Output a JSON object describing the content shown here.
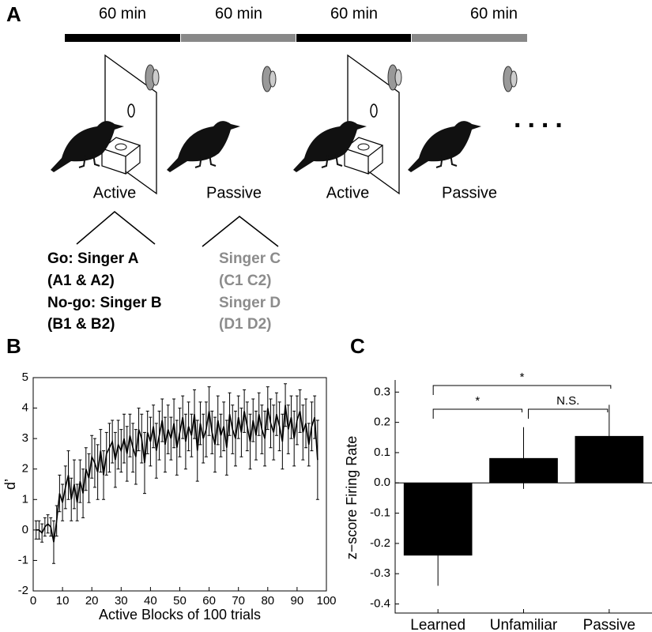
{
  "panel_a": {
    "label": "A",
    "durations": [
      "60 min",
      "60 min",
      "60 min",
      "60 min"
    ],
    "conditions": [
      "Active",
      "Passive",
      "Active",
      "Passive"
    ],
    "active_stimuli": [
      "Go: Singer A",
      "(A1 & A2)",
      "No-go: Singer B",
      "(B1 & B2)"
    ],
    "passive_stimuli": [
      "Singer C",
      "(C1 C2)",
      "Singer D",
      "(D1 D2)"
    ],
    "ellipsis": "...."
  },
  "chart_data": [
    {
      "type": "line",
      "panel": "B",
      "x_label": "Active Blocks of 100 trials",
      "y_label": "d’",
      "x": [
        1,
        2,
        3,
        4,
        5,
        6,
        7,
        8,
        9,
        10,
        11,
        12,
        13,
        14,
        15,
        16,
        17,
        18,
        19,
        20,
        21,
        22,
        23,
        24,
        25,
        26,
        27,
        28,
        29,
        30,
        31,
        32,
        33,
        34,
        35,
        36,
        37,
        38,
        39,
        40,
        41,
        42,
        43,
        44,
        45,
        46,
        47,
        48,
        49,
        50,
        51,
        52,
        53,
        54,
        55,
        56,
        57,
        58,
        59,
        60,
        61,
        62,
        63,
        64,
        65,
        66,
        67,
        68,
        69,
        70,
        71,
        72,
        73,
        74,
        75,
        76,
        77,
        78,
        79,
        80,
        81,
        82,
        83,
        84,
        85,
        86,
        87,
        88,
        89,
        90,
        91,
        92,
        93,
        94,
        95,
        96,
        97
      ],
      "series": [
        {
          "color": "#000000",
          "values": [
            0,
            0,
            -0.1,
            0.1,
            0.2,
            0.1,
            -0.4,
            0.3,
            1.2,
            0.9,
            1.4,
            1.8,
            1.0,
            1.5,
            0.9,
            1.6,
            1.2,
            2.0,
            1.7,
            2.4,
            2.2,
            1.9,
            2.6,
            1.8,
            2.5,
            2.7,
            2.9,
            2.3,
            2.8,
            2.6,
            3.0,
            2.5,
            3.1,
            2.7,
            2.4,
            3.3,
            3.0,
            2.2,
            3.2,
            2.9,
            3.4,
            2.6,
            3.1,
            3.6,
            2.8,
            3.3,
            3.0,
            3.5,
            2.7,
            3.2,
            3.7,
            2.9,
            3.4,
            3.1,
            3.8,
            2.6,
            3.5,
            3.0,
            3.3,
            3.9,
            3.2,
            2.8,
            3.6,
            3.1,
            3.4,
            2.7,
            3.8,
            3.3,
            3.0,
            3.7,
            3.2,
            3.9,
            3.4,
            2.9,
            3.6,
            3.1,
            3.8,
            3.3,
            3.0,
            4.0,
            3.5,
            3.2,
            3.8,
            3.4,
            2.9,
            4.1,
            3.3,
            3.7,
            3.0,
            3.6,
            3.9,
            3.2,
            3.5,
            2.8,
            3.4,
            3.7,
            2.3
          ],
          "errors": [
            0.3,
            0.3,
            0.3,
            0.3,
            0.3,
            0.3,
            0.7,
            0.5,
            0.6,
            0.6,
            0.7,
            0.8,
            0.7,
            0.8,
            0.6,
            0.7,
            0.8,
            0.7,
            0.8,
            0.7,
            0.8,
            0.9,
            0.7,
            0.8,
            0.7,
            0.8,
            0.7,
            0.9,
            0.8,
            0.7,
            0.8,
            0.9,
            0.7,
            0.8,
            0.9,
            0.7,
            0.8,
            1.0,
            0.7,
            0.8,
            0.7,
            0.9,
            0.8,
            0.7,
            0.9,
            0.8,
            0.7,
            0.8,
            0.9,
            0.8,
            0.7,
            0.9,
            0.8,
            0.7,
            0.8,
            1.0,
            0.7,
            0.8,
            0.9,
            0.8,
            0.7,
            0.9,
            0.8,
            0.7,
            0.8,
            0.9,
            0.7,
            0.8,
            0.9,
            0.7,
            0.8,
            0.7,
            0.8,
            0.9,
            0.7,
            0.8,
            0.7,
            0.8,
            0.9,
            0.7,
            0.8,
            0.9,
            0.7,
            0.8,
            0.9,
            0.7,
            0.8,
            0.7,
            0.9,
            0.8,
            0.7,
            0.9,
            0.8,
            0.7,
            0.8,
            0.7,
            1.3
          ]
        }
      ],
      "xlim": [
        0,
        100
      ],
      "xticks": [
        0,
        10,
        20,
        30,
        40,
        50,
        60,
        70,
        80,
        90,
        100
      ],
      "ylim": [
        -2,
        5
      ],
      "yticks": [
        -2,
        -1,
        0,
        1,
        2,
        3,
        4,
        5
      ]
    },
    {
      "type": "bar",
      "panel": "C",
      "y_label": "z−score Firing Rate",
      "categories": [
        "Learned",
        "Unfamiliar",
        "Passive"
      ],
      "series": [
        {
          "color": "#000000",
          "values": [
            -0.24,
            0.082,
            0.155
          ],
          "errors": [
            0.1,
            0.102,
            0.103
          ]
        }
      ],
      "ylim": [
        -0.43,
        0.34
      ],
      "yticks": [
        -0.4,
        -0.3,
        -0.2,
        -0.1,
        {
          "value": 0,
          "label": "0.0"
        },
        0.1,
        0.2,
        0.3
      ],
      "annotations": [
        "*",
        "*",
        "N.S."
      ]
    }
  ]
}
